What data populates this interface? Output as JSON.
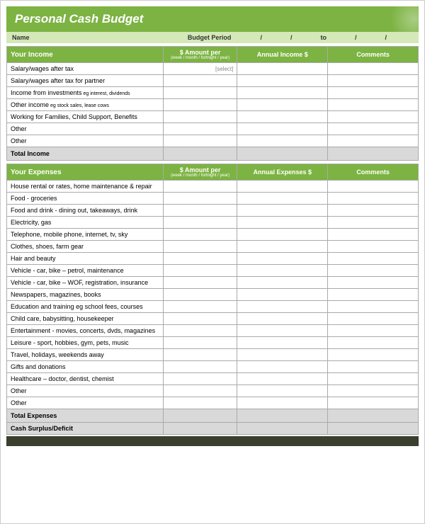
{
  "title": "Personal Cash Budget",
  "info": {
    "name_label": "Name",
    "period_label": "Budget Period",
    "to_label": "to",
    "slash": "/"
  },
  "income": {
    "header": "Your Income",
    "amount_header": "$ Amount per",
    "amount_sub": "(week / month / fortnight / year)",
    "annual_header": "Annual Income $",
    "comments_header": "Comments",
    "rows": [
      {
        "label": "Salary/wages after tax",
        "amount": "[select]"
      },
      {
        "label": "Salary/wages after tax for partner",
        "amount": ""
      },
      {
        "label": "Income from investments",
        "sub": "eg interest, dividends",
        "amount": ""
      },
      {
        "label": "Other income",
        "sub": "eg stock sales, lease cows",
        "amount": ""
      },
      {
        "label": "Working for Families, Child Support, Benefits",
        "amount": ""
      },
      {
        "label": "Other",
        "amount": ""
      },
      {
        "label": "Other",
        "amount": ""
      }
    ],
    "total_label": "Total Income"
  },
  "expenses": {
    "header": "Your Expenses",
    "amount_header": "$ Amount per",
    "amount_sub": "(week / month / fortnight / year)",
    "annual_header": "Annual Expenses $",
    "comments_header": "Comments",
    "rows": [
      {
        "label": "House rental or rates, home maintenance & repair"
      },
      {
        "label": "Food - groceries"
      },
      {
        "label": "Food and drink - dining out, takeaways, drink"
      },
      {
        "label": "Electricity, gas"
      },
      {
        "label": "Telephone, mobile phone, internet, tv, sky"
      },
      {
        "label": "Clothes, shoes, farm gear"
      },
      {
        "label": "Hair and beauty"
      },
      {
        "label": "Vehicle - car, bike – petrol, maintenance"
      },
      {
        "label": "Vehicle - car, bike – WOF, registration, insurance"
      },
      {
        "label": "Newspapers, magazines, books"
      },
      {
        "label": "Education and training eg school fees, courses"
      },
      {
        "label": "Child care, babysitting, housekeeper"
      },
      {
        "label": "Entertainment - movies, concerts, dvds, magazines"
      },
      {
        "label": "Leisure - sport, hobbies, gym, pets, music"
      },
      {
        "label": "Travel, holidays, weekends away"
      },
      {
        "label": "Gifts and donations"
      },
      {
        "label": "Healthcare – doctor, dentist, chemist"
      },
      {
        "label": "Other"
      },
      {
        "label": "Other"
      }
    ],
    "total_label": "Total Expenses"
  },
  "surplus_label": "Cash Surplus/Deficit",
  "colors": {
    "header_green": "#7cb342",
    "light_green": "#d4e8b8",
    "total_grey": "#d9d9d9",
    "dark_bar": "#3a3f2e",
    "border": "#aaa"
  }
}
